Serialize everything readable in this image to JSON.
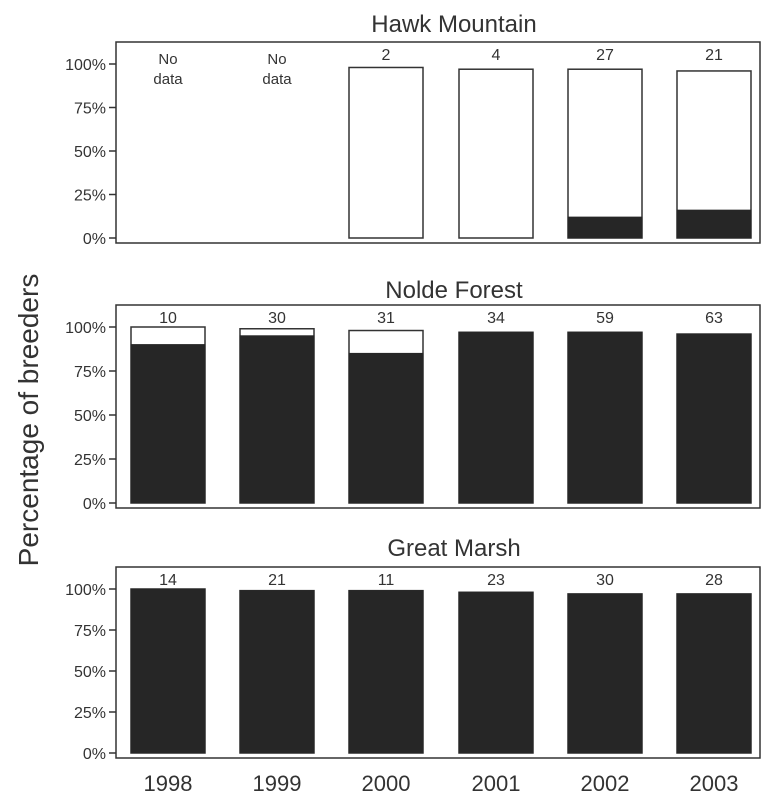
{
  "figure": {
    "ylabel": "Percentage of breeders",
    "xtick_labels": [
      "1998",
      "1999",
      "2000",
      "2001",
      "2002",
      "2003"
    ]
  },
  "chart_data": [
    {
      "type": "bar",
      "stacked": true,
      "title": "Hawk Mountain",
      "categories": [
        "1998",
        "1999",
        "2000",
        "2001",
        "2002",
        "2003"
      ],
      "ylabel": "Percentage of breeders",
      "ylim": [
        0,
        100
      ],
      "yticks": [
        "0%",
        "25%",
        "50%",
        "75%",
        "100%"
      ],
      "totals": [
        null,
        null,
        98,
        97,
        97,
        96
      ],
      "dark_values": [
        null,
        null,
        0,
        0,
        12,
        16
      ],
      "bar_labels": [
        "No data",
        "No data",
        "2",
        "4",
        "27",
        "21"
      ],
      "grid": false
    },
    {
      "type": "bar",
      "stacked": true,
      "title": "Nolde Forest",
      "categories": [
        "1998",
        "1999",
        "2000",
        "2001",
        "2002",
        "2003"
      ],
      "ylabel": "Percentage of breeders",
      "ylim": [
        0,
        100
      ],
      "yticks": [
        "0%",
        "25%",
        "50%",
        "75%",
        "100%"
      ],
      "totals": [
        100,
        99,
        98,
        97,
        97,
        96
      ],
      "dark_values": [
        90,
        95,
        85,
        97,
        97,
        96
      ],
      "bar_labels": [
        "10",
        "30",
        "31",
        "34",
        "59",
        "63"
      ],
      "grid": false
    },
    {
      "type": "bar",
      "stacked": true,
      "title": "Great Marsh",
      "categories": [
        "1998",
        "1999",
        "2000",
        "2001",
        "2002",
        "2003"
      ],
      "ylabel": "Percentage of breeders",
      "ylim": [
        0,
        100
      ],
      "yticks": [
        "0%",
        "25%",
        "50%",
        "75%",
        "100%"
      ],
      "totals": [
        100,
        99,
        99,
        98,
        97,
        97
      ],
      "dark_values": [
        100,
        99,
        99,
        98,
        97,
        97
      ],
      "bar_labels": [
        "14",
        "21",
        "11",
        "23",
        "30",
        "28"
      ],
      "grid": false
    }
  ],
  "colors": {
    "dark_bar": "#262626",
    "light_bar": "#ffffff",
    "outline": "#333333",
    "text": "#333333"
  }
}
